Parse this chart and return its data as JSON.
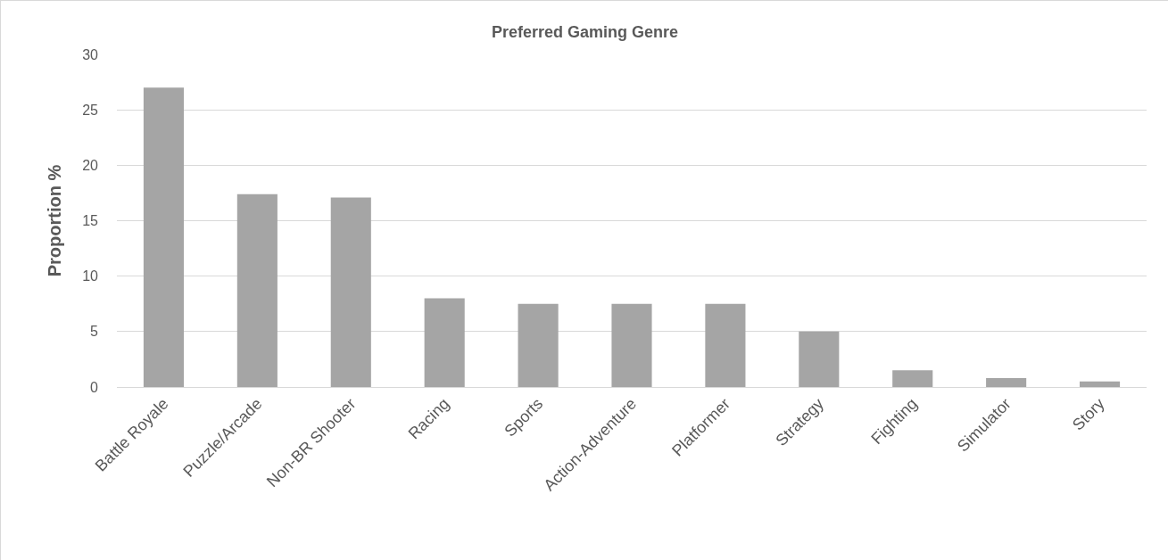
{
  "chart_data": {
    "type": "bar",
    "title": "Preferred Gaming Genre",
    "ylabel": "Proportion %",
    "categories": [
      "Battle Royale",
      "Puzzle/Arcade",
      "Non-BR Shooter",
      "Racing",
      "Sports",
      "Action-Adventure",
      "Platformer",
      "Strategy",
      "Fighting",
      "Simulator",
      "Story"
    ],
    "values": [
      27,
      17.4,
      17.1,
      8.0,
      7.5,
      7.5,
      7.5,
      5.0,
      1.5,
      0.8,
      0.5
    ],
    "color": "#a5a5a5",
    "ylim": [
      0,
      30
    ],
    "yticks": [
      0,
      5,
      10,
      15,
      20,
      25,
      30
    ],
    "grid": "y"
  }
}
